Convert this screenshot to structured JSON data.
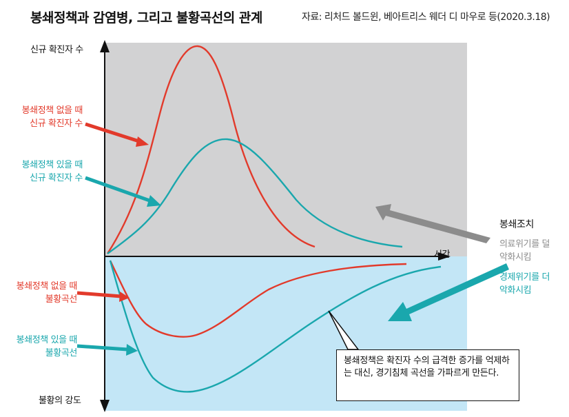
{
  "title": "봉쇄정책과 감염병, 그리고 불황곡선의 관계",
  "source": "자료: 리처드 볼드윈, 베아트리스 웨더 디 마우로 등(2020.3.18)",
  "axes": {
    "y_top": "신규 확진자 수",
    "y_bottom": "불황의 강도",
    "x": "시간"
  },
  "labels": {
    "infection_no_policy": [
      "봉쇄정책 없을 때",
      "신규 확진자 수"
    ],
    "infection_with_policy": [
      "봉쇄정책 있을 때",
      "신규 확진자 수"
    ],
    "recession_no_policy": [
      "봉쇄정책 없을 때",
      "불황곡선"
    ],
    "recession_with_policy": [
      "봉쇄정책 있을 때",
      "불황곡선"
    ]
  },
  "legend": {
    "lockdown": "봉쇄조치",
    "medical": [
      "의료위기를 덜",
      "악화시킴"
    ],
    "economic": [
      "경제위기를 더",
      "악화시킴"
    ]
  },
  "callout": "봉쇄정책은 확진자 수의 급격한 증가를 억제하는 대신, 경기침체 곡선을 가파르게 만든다.",
  "colors": {
    "red": "#e23a2b",
    "teal": "#1aa7ad",
    "gray_bg": "#d2d2d3",
    "blue_bg": "#c3e6f6",
    "gray_arrow": "#8c8c8c"
  }
}
